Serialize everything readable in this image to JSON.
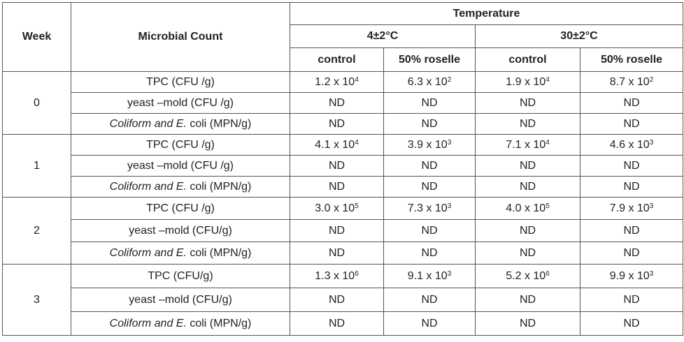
{
  "header": {
    "week": "Week",
    "microbial_count": "Microbial Count",
    "temperature": "Temperature",
    "temp_low": "4±2°C",
    "temp_high": "30±2°C",
    "control": "control",
    "roselle": "50% roselle"
  },
  "weeks": [
    {
      "week": "0",
      "rows": [
        {
          "label": "TPC (CFU /g)",
          "values": [
            [
              "1.2 x 10",
              "4"
            ],
            [
              "6.3 x 10",
              "2"
            ],
            [
              "1.9 x 10",
              "4"
            ],
            [
              "8.7 x 10",
              "2"
            ]
          ]
        },
        {
          "label": "yeast –mold (CFU /g)",
          "values": [
            [
              "ND",
              ""
            ],
            [
              "ND",
              ""
            ],
            [
              "ND",
              ""
            ],
            [
              "ND",
              ""
            ]
          ]
        },
        {
          "label_italic": "Coliform and E.",
          "label_rest": " coli (MPN/g)",
          "values": [
            [
              "ND",
              ""
            ],
            [
              "ND",
              ""
            ],
            [
              "ND",
              ""
            ],
            [
              "ND",
              ""
            ]
          ]
        }
      ]
    },
    {
      "week": "1",
      "rows": [
        {
          "label": "TPC (CFU /g)",
          "values": [
            [
              "4.1 x 10",
              "4"
            ],
            [
              "3.9 x 10",
              "3"
            ],
            [
              "7.1 x 10",
              "4"
            ],
            [
              "4.6 x 10",
              "3"
            ]
          ]
        },
        {
          "label": "yeast –mold (CFU /g)",
          "values": [
            [
              "ND",
              ""
            ],
            [
              "ND",
              ""
            ],
            [
              "ND",
              ""
            ],
            [
              "ND",
              ""
            ]
          ]
        },
        {
          "label_italic": "Coliform and E.",
          "label_rest": " coli (MPN/g)",
          "values": [
            [
              "ND",
              ""
            ],
            [
              "ND",
              ""
            ],
            [
              "ND",
              ""
            ],
            [
              "ND",
              ""
            ]
          ]
        }
      ]
    },
    {
      "week": "2",
      "rows": [
        {
          "label": "TPC (CFU /g)",
          "values": [
            [
              "3.0 x 10",
              "5"
            ],
            [
              "7.3 x 10",
              "3"
            ],
            [
              "4.0 x 10",
              "5"
            ],
            [
              "7.9 x 10",
              "3"
            ]
          ]
        },
        {
          "label": "yeast –mold (CFU/g)",
          "values": [
            [
              "ND",
              ""
            ],
            [
              "ND",
              ""
            ],
            [
              "ND",
              ""
            ],
            [
              "ND",
              ""
            ]
          ]
        },
        {
          "label_italic": "Coliform and E.",
          "label_rest": " coli (MPN/g)",
          "values": [
            [
              "ND",
              ""
            ],
            [
              "ND",
              ""
            ],
            [
              "ND",
              ""
            ],
            [
              "ND",
              ""
            ]
          ]
        }
      ]
    },
    {
      "week": "3",
      "rows": [
        {
          "label": "TPC (CFU/g)",
          "values": [
            [
              "1.3 x 10",
              "6"
            ],
            [
              "9.1 x 10",
              "3"
            ],
            [
              "5.2 x 10",
              "6"
            ],
            [
              "9.9 x 10",
              "3"
            ]
          ]
        },
        {
          "label": "yeast –mold (CFU/g)",
          "values": [
            [
              "ND",
              ""
            ],
            [
              "ND",
              ""
            ],
            [
              "ND",
              ""
            ],
            [
              "ND",
              ""
            ]
          ]
        },
        {
          "label_italic": "Coliform and E.",
          "label_rest": " coli (MPN/g)",
          "values": [
            [
              "ND",
              ""
            ],
            [
              "ND",
              ""
            ],
            [
              "ND",
              ""
            ],
            [
              "ND",
              ""
            ]
          ]
        }
      ]
    }
  ]
}
